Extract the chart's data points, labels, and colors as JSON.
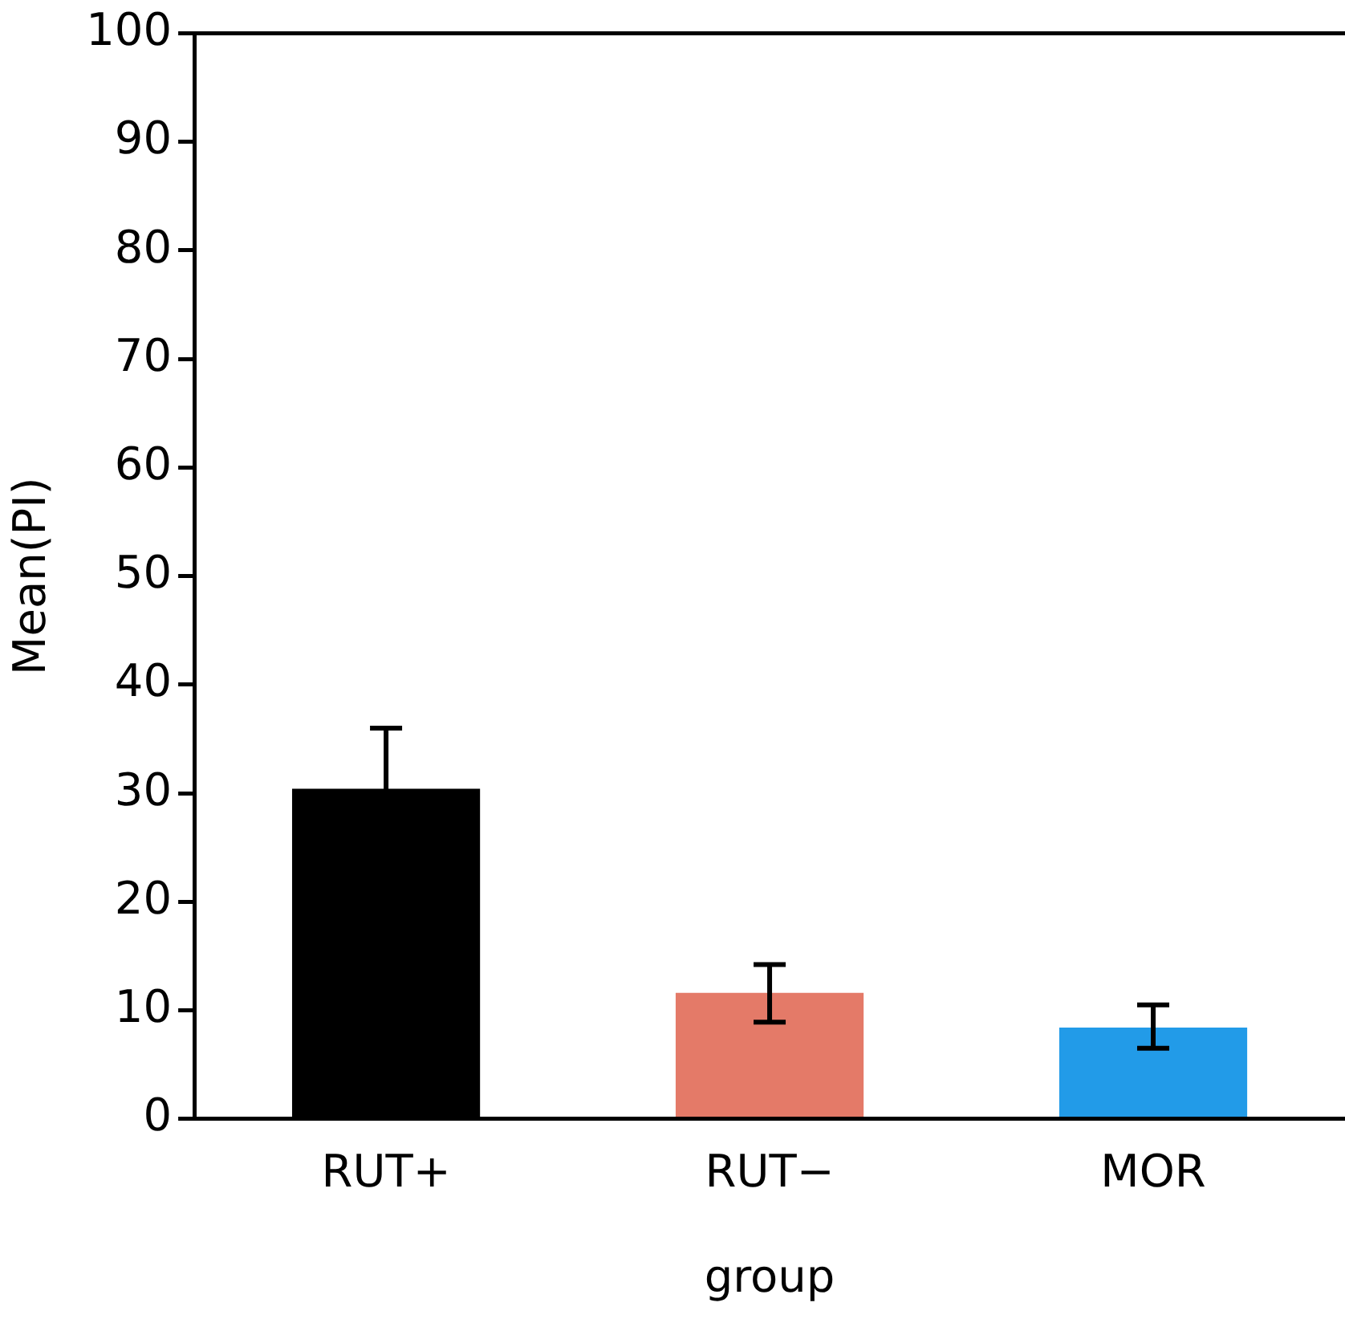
{
  "chart_data": {
    "type": "bar",
    "xlabel": "group",
    "ylabel": "Mean(PI)",
    "categories": [
      "RUT+",
      "RUT−",
      "MOR"
    ],
    "values": [
      30.4,
      11.6,
      8.4
    ],
    "colors": [
      "#000000",
      "#e47a68",
      "#229be8"
    ],
    "errors": [
      5.6,
      [
        8.9,
        14.2
      ],
      [
        6.5,
        10.5
      ]
    ],
    "ylim": [
      0,
      100
    ],
    "yticks": [
      0,
      10,
      20,
      30,
      40,
      50,
      60,
      70,
      80,
      90,
      100
    ],
    "grid": false,
    "legend": false
  }
}
